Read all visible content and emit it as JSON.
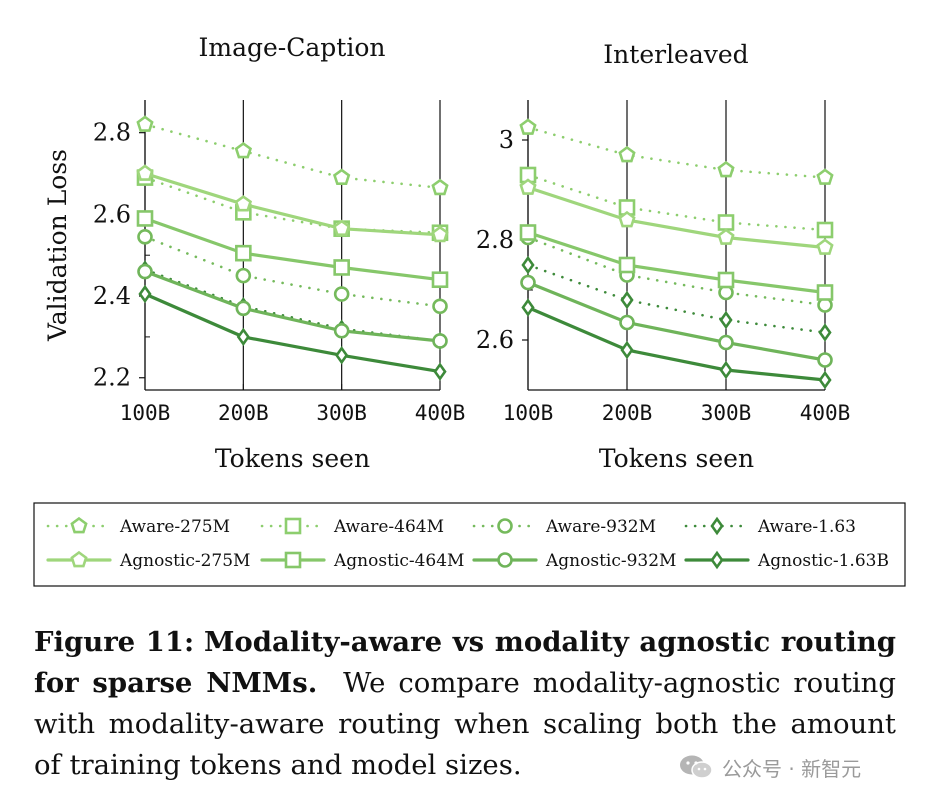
{
  "chart_data": [
    {
      "type": "line",
      "title": "Image-Caption",
      "xlabel": "Tokens seen",
      "ylabel": "Validation Loss",
      "categories": [
        "100B",
        "200B",
        "300B",
        "400B"
      ],
      "yticks": [
        "2.2",
        "2.4",
        "2.6",
        "2.8"
      ],
      "ylim": [
        2.17,
        2.88
      ],
      "grid": false,
      "series": [
        {
          "name": "Aware-275M",
          "values": [
            2.82,
            2.755,
            2.69,
            2.665
          ]
        },
        {
          "name": "Aware-464M",
          "values": [
            2.69,
            2.605,
            2.565,
            2.555
          ]
        },
        {
          "name": "Aware-932M",
          "values": [
            2.545,
            2.45,
            2.405,
            2.375
          ]
        },
        {
          "name": "Aware-1.63",
          "values": [
            2.465,
            2.375,
            2.32,
            2.29
          ]
        },
        {
          "name": "Agnostic-275M",
          "values": [
            2.7,
            2.625,
            2.565,
            2.55
          ]
        },
        {
          "name": "Agnostic-464M",
          "values": [
            2.59,
            2.505,
            2.47,
            2.44
          ]
        },
        {
          "name": "Agnostic-932M",
          "values": [
            2.46,
            2.37,
            2.315,
            2.29
          ]
        },
        {
          "name": "Agnostic-1.63B",
          "values": [
            2.405,
            2.3,
            2.255,
            2.215
          ]
        }
      ]
    },
    {
      "type": "line",
      "title": "Interleaved",
      "xlabel": "Tokens seen",
      "ylabel": "",
      "categories": [
        "100B",
        "200B",
        "300B",
        "400B"
      ],
      "yticks": [
        "2.6",
        "2.8",
        "3"
      ],
      "ylim": [
        2.5,
        3.08
      ],
      "grid": false,
      "series": [
        {
          "name": "Aware-275M",
          "values": [
            3.025,
            2.97,
            2.94,
            2.925
          ]
        },
        {
          "name": "Aware-464M",
          "values": [
            2.93,
            2.865,
            2.835,
            2.82
          ]
        },
        {
          "name": "Aware-932M",
          "values": [
            2.805,
            2.73,
            2.695,
            2.67
          ]
        },
        {
          "name": "Aware-1.63",
          "values": [
            2.75,
            2.68,
            2.64,
            2.615
          ]
        },
        {
          "name": "Agnostic-275M",
          "values": [
            2.905,
            2.84,
            2.805,
            2.785
          ]
        },
        {
          "name": "Agnostic-464M",
          "values": [
            2.815,
            2.75,
            2.72,
            2.695
          ]
        },
        {
          "name": "Agnostic-932M",
          "values": [
            2.715,
            2.635,
            2.595,
            2.56
          ]
        },
        {
          "name": "Agnostic-1.63B",
          "values": [
            2.665,
            2.58,
            2.54,
            2.52
          ]
        }
      ]
    }
  ],
  "legend": {
    "placement": "bottom",
    "entries": [
      {
        "name": "Aware-275M",
        "style": "dotted",
        "marker": "pentagon",
        "color": "#8dce6e"
      },
      {
        "name": "Aware-464M",
        "style": "dotted",
        "marker": "square",
        "color": "#8dce6e"
      },
      {
        "name": "Aware-932M",
        "style": "dotted",
        "marker": "circle",
        "color": "#75ba5c"
      },
      {
        "name": "Aware-1.63",
        "style": "dotted",
        "marker": "diamond",
        "color": "#3d8a3a"
      },
      {
        "name": "Agnostic-275M",
        "style": "solid",
        "marker": "pentagon",
        "color": "#9fd67c"
      },
      {
        "name": "Agnostic-464M",
        "style": "solid",
        "marker": "square",
        "color": "#86c76a"
      },
      {
        "name": "Agnostic-932M",
        "style": "solid",
        "marker": "circle",
        "color": "#6fb45a"
      },
      {
        "name": "Agnostic-1.63B",
        "style": "solid",
        "marker": "diamond",
        "color": "#3d8a3a"
      }
    ]
  },
  "caption": {
    "label": "Figure 11:",
    "bold_title": "Modality-aware vs modality agnostic routing for sparse NMMs.",
    "body": "We compare modality-agnostic routing with modality-aware routing when scaling both the amount of training tokens and model sizes."
  },
  "watermark": {
    "text": "公众号 · 新智元",
    "icon": "wechat-icon"
  }
}
